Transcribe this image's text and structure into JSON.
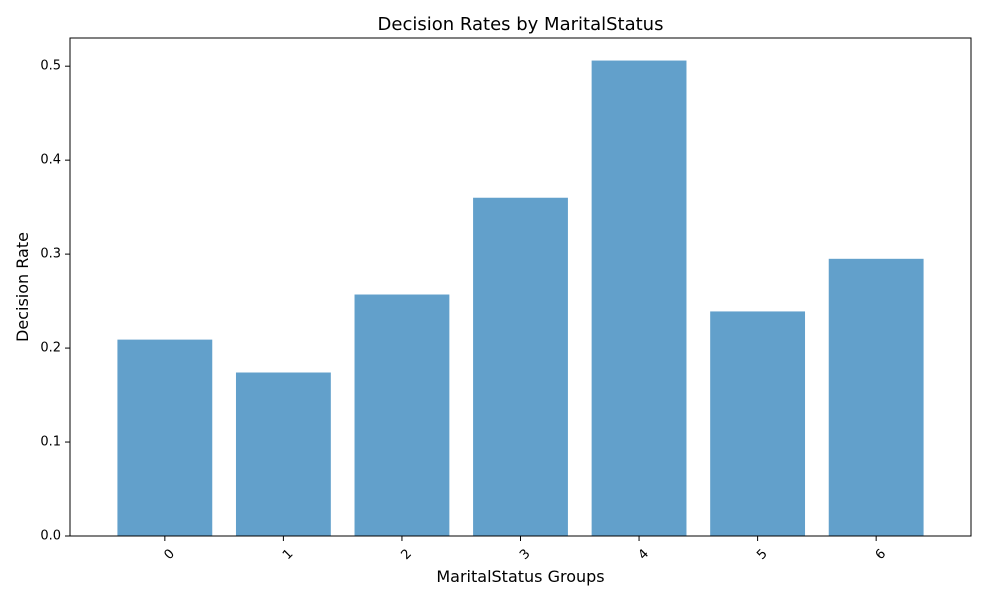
{
  "chart_data": {
    "type": "bar",
    "title": "Decision Rates by MaritalStatus",
    "xlabel": "MaritalStatus Groups",
    "ylabel": "Decision Rate",
    "categories": [
      "0",
      "1",
      "2",
      "3",
      "4",
      "5",
      "6"
    ],
    "values": [
      0.209,
      0.174,
      0.257,
      0.36,
      0.506,
      0.239,
      0.295
    ],
    "ylim": [
      0,
      0.53
    ],
    "yticks": [
      0.0,
      0.1,
      0.2,
      0.3,
      0.4,
      0.5
    ],
    "ytick_labels": [
      "0.0",
      "0.1",
      "0.2",
      "0.3",
      "0.4",
      "0.5"
    ],
    "xtick_rotation_deg": 45,
    "grid": false,
    "legend": "none",
    "bar_color": "#62a0cb"
  }
}
